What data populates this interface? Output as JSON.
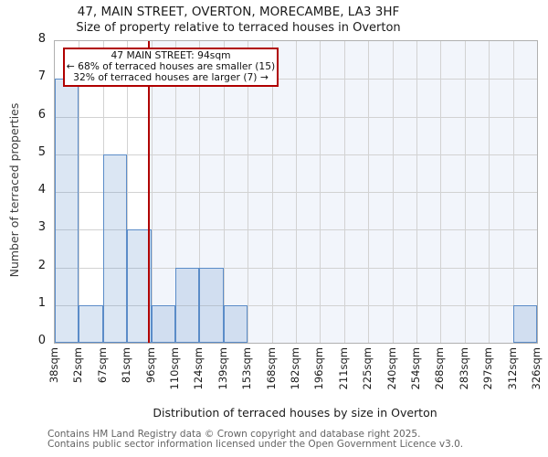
{
  "header": {
    "title": "47, MAIN STREET, OVERTON, MORECAMBE, LA3 3HF",
    "subtitle": "Size of property relative to terraced houses in Overton"
  },
  "chart_data": {
    "type": "bar",
    "title": "47, MAIN STREET, OVERTON, MORECAMBE, LA3 3HF",
    "subtitle": "Size of property relative to terraced houses in Overton",
    "xlabel": "Distribution of terraced houses by size in Overton",
    "ylabel": "Number of terraced properties",
    "x_tick_labels": [
      "38sqm",
      "52sqm",
      "67sqm",
      "81sqm",
      "96sqm",
      "110sqm",
      "124sqm",
      "139sqm",
      "153sqm",
      "168sqm",
      "182sqm",
      "196sqm",
      "211sqm",
      "225sqm",
      "240sqm",
      "254sqm",
      "268sqm",
      "283sqm",
      "297sqm",
      "312sqm",
      "326sqm"
    ],
    "bin_edges_sqm": [
      38,
      52,
      67,
      81,
      96,
      110,
      124,
      139,
      153,
      168,
      182,
      196,
      211,
      225,
      240,
      254,
      268,
      283,
      297,
      312,
      326
    ],
    "values": [
      7,
      1,
      5,
      3,
      1,
      2,
      2,
      1,
      0,
      0,
      0,
      0,
      0,
      0,
      0,
      0,
      0,
      0,
      0,
      1
    ],
    "y_ticks": [
      0,
      1,
      2,
      3,
      4,
      5,
      6,
      7,
      8
    ],
    "ylim": [
      0,
      8
    ],
    "xlim_sqm": [
      38,
      326
    ],
    "grid": true,
    "legend": null,
    "marker": {
      "value_sqm": 94,
      "label": "47 MAIN STREET: 94sqm",
      "color": "#b00000"
    },
    "annotation": {
      "lines": [
        "47 MAIN STREET: 94sqm",
        "← 68% of terraced houses are smaller (15)",
        "32% of terraced houses are larger (7) →"
      ]
    },
    "colors": {
      "bar_fill": "rgba(91,140,200,0.22)",
      "bar_edge": "#5b8cc8",
      "marker_line": "#b00000",
      "shade_right_of_marker": "#f2f5fb",
      "gridline": "#d2d2d2",
      "spine": "#b0b0b0"
    }
  },
  "footer": {
    "line1": "Contains HM Land Registry data © Crown copyright and database right 2025.",
    "line2": "Contains public sector information licensed under the Open Government Licence v3.0."
  }
}
